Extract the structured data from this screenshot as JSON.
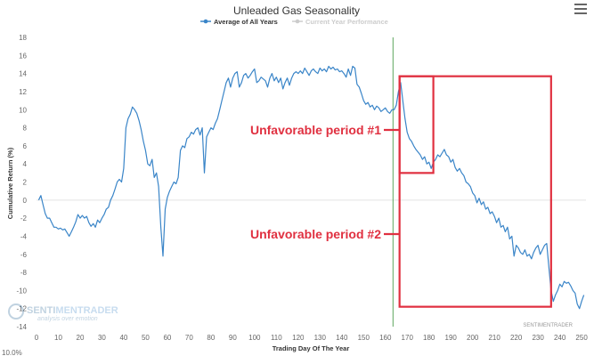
{
  "chart_data": {
    "type": "line",
    "title": "Unleaded Gas Seasonality",
    "xlabel": "Trading Day Of The Year",
    "ylabel": "Cumulative Return (%)",
    "xlim": [
      0,
      252
    ],
    "ylim": [
      -14,
      18
    ],
    "xticks": [
      0,
      10,
      20,
      30,
      40,
      50,
      60,
      70,
      80,
      90,
      100,
      110,
      120,
      130,
      140,
      150,
      160,
      170,
      180,
      190,
      200,
      210,
      220,
      230,
      240,
      250
    ],
    "yticks": [
      -14,
      -12,
      -10,
      -8,
      -6,
      -4,
      -2,
      0,
      2,
      4,
      6,
      8,
      10,
      12,
      14,
      16,
      18
    ],
    "grid": "horizontal zero line",
    "legend_position": "top-center",
    "series": [
      {
        "name": "Average of All Years",
        "color": "#3a85c8",
        "points": [
          [
            1,
            0
          ],
          [
            2,
            0.5
          ],
          [
            3,
            -0.5
          ],
          [
            4,
            -1.5
          ],
          [
            5,
            -2
          ],
          [
            6,
            -2
          ],
          [
            7,
            -2.5
          ],
          [
            8,
            -3
          ],
          [
            9,
            -3
          ],
          [
            10,
            -3.2
          ],
          [
            11,
            -3.1
          ],
          [
            12,
            -3.3
          ],
          [
            13,
            -3.2
          ],
          [
            14,
            -3.6
          ],
          [
            15,
            -4
          ],
          [
            16,
            -3.5
          ],
          [
            17,
            -3.0
          ],
          [
            18,
            -2.4
          ],
          [
            19,
            -1.6
          ],
          [
            20,
            -2.0
          ],
          [
            21,
            -1.7
          ],
          [
            22,
            -2.0
          ],
          [
            23,
            -1.8
          ],
          [
            24,
            -2.5
          ],
          [
            25,
            -2.9
          ],
          [
            26,
            -2.6
          ],
          [
            27,
            -3.0
          ],
          [
            28,
            -2.2
          ],
          [
            29,
            -2.5
          ],
          [
            30,
            -2.0
          ],
          [
            31,
            -1.6
          ],
          [
            32,
            -1.0
          ],
          [
            33,
            -0.8
          ],
          [
            34,
            0
          ],
          [
            35,
            0.5
          ],
          [
            36,
            1.2
          ],
          [
            37,
            2.0
          ],
          [
            38,
            2.3
          ],
          [
            39,
            2.0
          ],
          [
            40,
            3.5
          ],
          [
            41,
            8.0
          ],
          [
            42,
            9.0
          ],
          [
            43,
            9.5
          ],
          [
            44,
            10.3
          ],
          [
            45,
            10.0
          ],
          [
            46,
            9.6
          ],
          [
            47,
            8.8
          ],
          [
            48,
            7.8
          ],
          [
            49,
            6.5
          ],
          [
            50,
            5.5
          ],
          [
            51,
            4.0
          ],
          [
            52,
            3.8
          ],
          [
            53,
            4.5
          ],
          [
            54,
            2.5
          ],
          [
            55,
            3.0
          ],
          [
            56,
            1.5
          ],
          [
            57,
            -3.0
          ],
          [
            58,
            -6.2
          ],
          [
            59,
            -1.0
          ],
          [
            60,
            0.3
          ],
          [
            61,
            1.0
          ],
          [
            62,
            1.5
          ],
          [
            63,
            2.0
          ],
          [
            64,
            1.8
          ],
          [
            65,
            2.5
          ],
          [
            66,
            5.5
          ],
          [
            67,
            6.0
          ],
          [
            68,
            5.8
          ],
          [
            69,
            6.8
          ],
          [
            70,
            7.0
          ],
          [
            71,
            7.5
          ],
          [
            72,
            7.3
          ],
          [
            73,
            7.8
          ],
          [
            74,
            8.0
          ],
          [
            75,
            7.2
          ],
          [
            76,
            8.0
          ],
          [
            77,
            3.0
          ],
          [
            78,
            7.0
          ],
          [
            79,
            7.5
          ],
          [
            80,
            8.0
          ],
          [
            81,
            7.8
          ],
          [
            82,
            8.5
          ],
          [
            83,
            9.0
          ],
          [
            84,
            10.0
          ],
          [
            85,
            11.0
          ],
          [
            86,
            12.0
          ],
          [
            87,
            13.0
          ],
          [
            88,
            13.5
          ],
          [
            89,
            12.5
          ],
          [
            90,
            13.5
          ],
          [
            91,
            14.0
          ],
          [
            92,
            14.2
          ],
          [
            93,
            12.5
          ],
          [
            94,
            13.0
          ],
          [
            95,
            13.8
          ],
          [
            96,
            14.0
          ],
          [
            97,
            13.5
          ],
          [
            98,
            13.8
          ],
          [
            99,
            14.2
          ],
          [
            100,
            14.5
          ],
          [
            101,
            13.0
          ],
          [
            102,
            13.2
          ],
          [
            103,
            13.6
          ],
          [
            104,
            13.4
          ],
          [
            105,
            13.2
          ],
          [
            106,
            12.5
          ],
          [
            107,
            13.5
          ],
          [
            108,
            14.0
          ],
          [
            109,
            13.2
          ],
          [
            110,
            13.6
          ],
          [
            111,
            13.0
          ],
          [
            112,
            13.5
          ],
          [
            113,
            12.3
          ],
          [
            114,
            13.0
          ],
          [
            115,
            13.5
          ],
          [
            116,
            12.7
          ],
          [
            117,
            13.5
          ],
          [
            118,
            14.0
          ],
          [
            119,
            14.2
          ],
          [
            120,
            14.0
          ],
          [
            121,
            14.3
          ],
          [
            122,
            14.0
          ],
          [
            123,
            14.6
          ],
          [
            124,
            14.2
          ],
          [
            125,
            13.8
          ],
          [
            126,
            14.3
          ],
          [
            127,
            14.5
          ],
          [
            128,
            14.2
          ],
          [
            129,
            14.0
          ],
          [
            130,
            14.6
          ],
          [
            131,
            14.3
          ],
          [
            132,
            14.5
          ],
          [
            133,
            14.2
          ],
          [
            134,
            14.8
          ],
          [
            135,
            14.5
          ],
          [
            136,
            14.7
          ],
          [
            137,
            14.4
          ],
          [
            138,
            14.5
          ],
          [
            139,
            14.2
          ],
          [
            140,
            14.3
          ],
          [
            141,
            14.0
          ],
          [
            142,
            13.6
          ],
          [
            143,
            14.5
          ],
          [
            144,
            13.8
          ],
          [
            145,
            14.8
          ],
          [
            146,
            14.6
          ],
          [
            147,
            12.8
          ],
          [
            148,
            12.5
          ],
          [
            149,
            11.8
          ],
          [
            150,
            11.0
          ],
          [
            151,
            10.6
          ],
          [
            152,
            10.8
          ],
          [
            153,
            10.3
          ],
          [
            154,
            10.5
          ],
          [
            155,
            10.0
          ],
          [
            156,
            10.4
          ],
          [
            157,
            10.2
          ],
          [
            158,
            9.8
          ],
          [
            159,
            10.0
          ],
          [
            160,
            10.2
          ],
          [
            161,
            9.8
          ],
          [
            162,
            9.6
          ],
          [
            163,
            10.0
          ],
          [
            164,
            10.0
          ],
          [
            165,
            10.5
          ],
          [
            166,
            12.0
          ],
          [
            167,
            13.0
          ],
          [
            168,
            11.0
          ],
          [
            169,
            9.0
          ],
          [
            170,
            7.5
          ],
          [
            171,
            6.8
          ],
          [
            172,
            6.5
          ],
          [
            173,
            6.0
          ],
          [
            174,
            5.6
          ],
          [
            175,
            5.3
          ],
          [
            176,
            5.0
          ],
          [
            177,
            4.5
          ],
          [
            178,
            4.8
          ],
          [
            179,
            4.0
          ],
          [
            180,
            4.2
          ],
          [
            181,
            3.5
          ],
          [
            182,
            4.2
          ],
          [
            183,
            4.5
          ],
          [
            184,
            5.0
          ],
          [
            185,
            4.8
          ],
          [
            186,
            5.2
          ],
          [
            187,
            5.6
          ],
          [
            188,
            5.0
          ],
          [
            189,
            4.8
          ],
          [
            190,
            4.2
          ],
          [
            191,
            4.5
          ],
          [
            192,
            3.6
          ],
          [
            193,
            3.2
          ],
          [
            194,
            3.5
          ],
          [
            195,
            3.0
          ],
          [
            196,
            2.7
          ],
          [
            197,
            2.0
          ],
          [
            198,
            1.8
          ],
          [
            199,
            1.5
          ],
          [
            200,
            0.8
          ],
          [
            201,
            0.5
          ],
          [
            202,
            -0.3
          ],
          [
            203,
            0.2
          ],
          [
            204,
            -0.5
          ],
          [
            205,
            -0.2
          ],
          [
            206,
            -1.0
          ],
          [
            207,
            -0.8
          ],
          [
            208,
            -1.5
          ],
          [
            209,
            -1.3
          ],
          [
            210,
            -1.8
          ],
          [
            211,
            -2.5
          ],
          [
            212,
            -2.0
          ],
          [
            213,
            -3.0
          ],
          [
            214,
            -2.8
          ],
          [
            215,
            -3.5
          ],
          [
            216,
            -3.0
          ],
          [
            217,
            -4.3
          ],
          [
            218,
            -4.0
          ],
          [
            219,
            -6.2
          ],
          [
            220,
            -5.0
          ],
          [
            221,
            -5.3
          ],
          [
            222,
            -5.8
          ],
          [
            223,
            -6.0
          ],
          [
            224,
            -5.5
          ],
          [
            225,
            -6.2
          ],
          [
            226,
            -6.0
          ],
          [
            227,
            -6.5
          ],
          [
            228,
            -5.8
          ],
          [
            229,
            -5.3
          ],
          [
            230,
            -5.0
          ],
          [
            231,
            -6.0
          ],
          [
            232,
            -5.5
          ],
          [
            233,
            -5.0
          ],
          [
            234,
            -4.8
          ],
          [
            235,
            -7.5
          ],
          [
            236,
            -10.0
          ],
          [
            237,
            -11.2
          ],
          [
            238,
            -10.5
          ],
          [
            239,
            -10.0
          ],
          [
            240,
            -9.3
          ],
          [
            241,
            -9.6
          ],
          [
            242,
            -9.0
          ],
          [
            243,
            -9.2
          ],
          [
            244,
            -9.1
          ],
          [
            245,
            -9.5
          ],
          [
            246,
            -10.0
          ],
          [
            247,
            -10.3
          ],
          [
            248,
            -11.5
          ],
          [
            249,
            -12.0
          ],
          [
            250,
            -11.2
          ],
          [
            251,
            -10.5
          ]
        ]
      },
      {
        "name": "Current Year Performance",
        "color": "#cccccc",
        "points": []
      }
    ],
    "current_day_marker": {
      "x": 163.5,
      "color": "#5da55d"
    },
    "annotations": [
      {
        "text": "Unfavorable period #1",
        "box_x": [
          166.5,
          182
        ],
        "box_y": [
          3,
          13.7
        ]
      },
      {
        "text": "Unfavorable period #2",
        "box_x": [
          166.5,
          236
        ],
        "box_y": [
          -11.8,
          13.7
        ]
      }
    ],
    "annotation_color": "#e03040",
    "watermark": {
      "brand_left": "SENTI",
      "brand_right": "MENTRADER",
      "tagline": "analysis over emotion"
    },
    "credit": "SENTIMENTRADER",
    "cut_off_label": "10.0%"
  }
}
